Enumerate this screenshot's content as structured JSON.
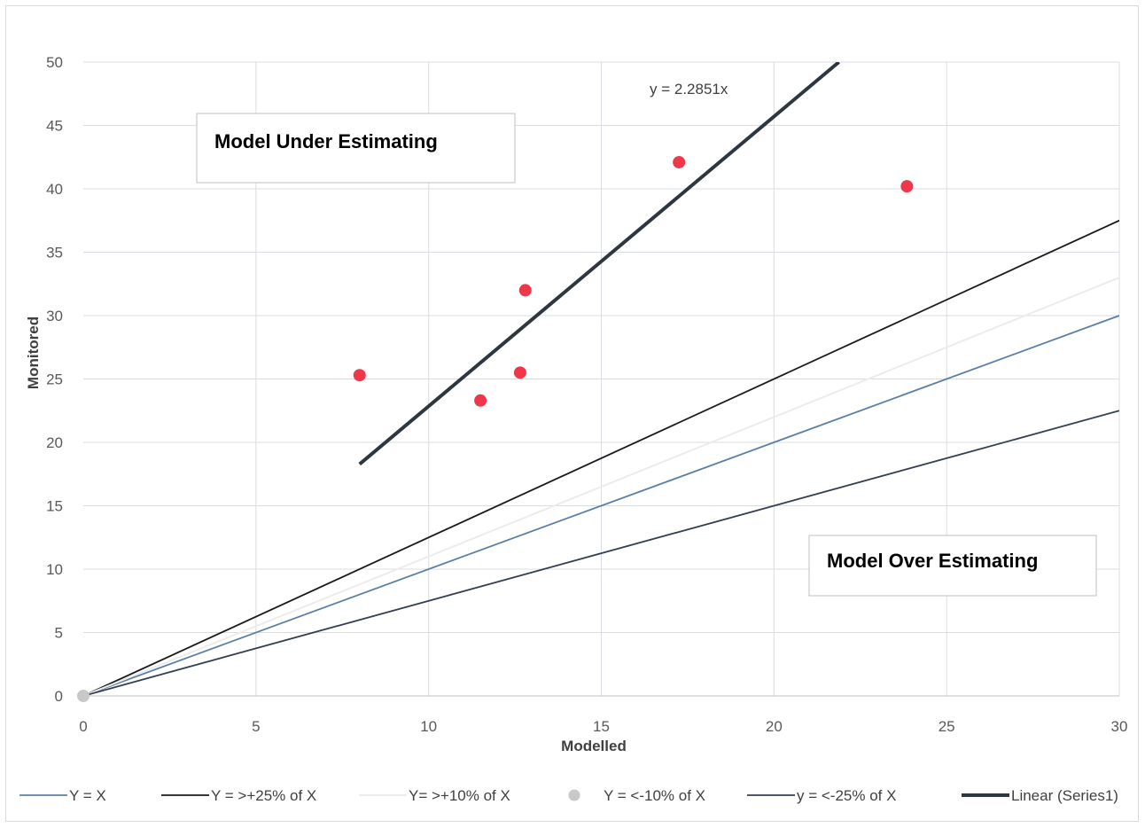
{
  "chart_data": {
    "type": "scatter",
    "xlabel": "Modelled",
    "ylabel": "Monitored",
    "xlim": [
      0,
      30
    ],
    "ylim": [
      0,
      50
    ],
    "x_ticks": [
      "0",
      "5",
      "10",
      "15",
      "20",
      "25",
      "30"
    ],
    "y_ticks": [
      "0",
      "5",
      "10",
      "15",
      "20",
      "25",
      "30",
      "35",
      "40",
      "45",
      "50"
    ],
    "grid": true,
    "scatter_points": {
      "name": "Series1",
      "color": "#f0374a",
      "points": [
        {
          "x": 8.0,
          "y": 25.3
        },
        {
          "x": 11.5,
          "y": 23.3
        },
        {
          "x": 12.65,
          "y": 25.5
        },
        {
          "x": 12.8,
          "y": 32.0
        },
        {
          "x": 17.25,
          "y": 42.1
        },
        {
          "x": 23.85,
          "y": 40.2
        }
      ]
    },
    "reference_lines": [
      {
        "name": "Y = X",
        "slope": 1.0,
        "color": "#5b7fa6"
      },
      {
        "name": "Y = >+25% of X",
        "slope": 1.25,
        "color": "#1a1a1a"
      },
      {
        "name": "Y= >+10% of X",
        "slope": 1.1,
        "color": "#ececec"
      },
      {
        "name": "y = <-25% of X",
        "slope": 0.75,
        "color": "#333f50"
      }
    ],
    "marker_series": {
      "name": "Y = <-10% of X",
      "color": "#c8c8c8",
      "points": [
        {
          "x": 0,
          "y": 0
        }
      ]
    },
    "trendline": {
      "name": "Linear (Series1)",
      "slope": 2.2851,
      "x_start": 8.0,
      "equation": "y = 2.2851x",
      "color": "#2e3640"
    },
    "annotations": {
      "under": "Model Under Estimating",
      "over": "Model Over Estimating"
    },
    "legend_position": "bottom",
    "legend": [
      {
        "label": "Y = X",
        "kind": "line",
        "color": "#5b7fa6"
      },
      {
        "label": "Y = >+25% of X",
        "kind": "line",
        "color": "#1a1a1a"
      },
      {
        "label": "Y= >+10% of X",
        "kind": "line",
        "color": "#ececec"
      },
      {
        "label": "Y = <-10% of X",
        "kind": "marker",
        "color": "#c8c8c8"
      },
      {
        "label": "y = <-25% of X",
        "kind": "line",
        "color": "#333f50"
      },
      {
        "label": "Linear (Series1)",
        "kind": "thick-line",
        "color": "#2e3640"
      }
    ]
  }
}
